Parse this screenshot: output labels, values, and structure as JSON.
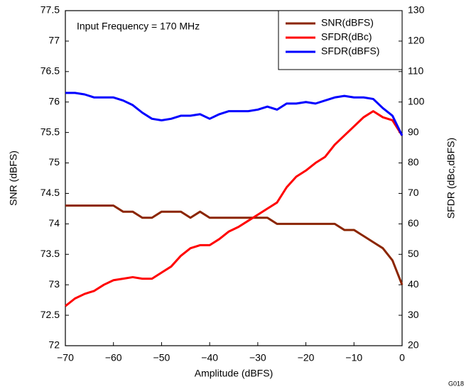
{
  "chart_data": {
    "type": "line",
    "annotation": "Input Frequency = 170 MHz",
    "figure_id": "G018",
    "xlabel": "Amplitude (dBFS)",
    "ylabel": "SNR (dBFS)",
    "y2label": "SFDR (dBc,dBFS)",
    "x": [
      -70,
      -68,
      -66,
      -64,
      -62,
      -60,
      -58,
      -56,
      -54,
      -52,
      -50,
      -48,
      -46,
      -44,
      -42,
      -40,
      -38,
      -36,
      -34,
      -32,
      -30,
      -28,
      -26,
      -24,
      -22,
      -20,
      -18,
      -16,
      -14,
      -12,
      -10,
      -8,
      -6,
      -4,
      -2,
      0
    ],
    "series": [
      {
        "name": "SNR(dBFS)",
        "color": "#8b2500",
        "axis": "y",
        "values": [
          74.3,
          74.3,
          74.3,
          74.3,
          74.3,
          74.3,
          74.2,
          74.2,
          74.1,
          74.1,
          74.2,
          74.2,
          74.2,
          74.1,
          74.2,
          74.1,
          74.1,
          74.1,
          74.1,
          74.1,
          74.1,
          74.1,
          74.0,
          74.0,
          74.0,
          74.0,
          74.0,
          74.0,
          74.0,
          73.9,
          73.9,
          73.8,
          73.7,
          73.6,
          73.4,
          73.0
        ]
      },
      {
        "name": "SFDR(dBc)",
        "color": "#ff0000",
        "axis": "y2",
        "values": [
          33,
          35.5,
          37,
          38,
          40,
          41.5,
          42,
          42.5,
          42,
          42,
          44,
          46,
          49.5,
          52,
          53,
          53,
          55,
          57.5,
          59,
          61,
          63,
          65,
          67,
          72,
          75.5,
          77.5,
          80,
          82,
          86,
          89,
          92,
          95,
          97,
          95,
          94,
          89
        ]
      },
      {
        "name": "SFDR(dBFS)",
        "color": "#0000ff",
        "axis": "y2",
        "values": [
          103,
          103,
          102.5,
          101.5,
          101.5,
          101.5,
          100.5,
          99,
          96.5,
          94.5,
          94,
          94.5,
          95.5,
          95.5,
          96,
          94.5,
          96,
          97,
          97,
          97,
          97.5,
          98.5,
          97.5,
          99.5,
          99.5,
          100,
          99.5,
          100.5,
          101.5,
          102,
          101.5,
          101.5,
          101,
          98,
          95.5,
          89
        ]
      }
    ],
    "xlim": [
      -70,
      0
    ],
    "xticks": [
      {
        "value": -70,
        "label": "−70"
      },
      {
        "value": -60,
        "label": "−60"
      },
      {
        "value": -50,
        "label": "−50"
      },
      {
        "value": -40,
        "label": "−40"
      },
      {
        "value": -30,
        "label": "−30"
      },
      {
        "value": -20,
        "label": "−20"
      },
      {
        "value": -10,
        "label": "−10"
      },
      0
    ],
    "ylim": [
      72,
      77.5
    ],
    "yticks": [
      72,
      72.5,
      73,
      73.5,
      74,
      74.5,
      75,
      75.5,
      76,
      76.5,
      77,
      77.5
    ],
    "y2lim": [
      20,
      130
    ],
    "y2ticks": [
      20,
      30,
      40,
      50,
      60,
      70,
      80,
      90,
      100,
      110,
      120,
      130
    ],
    "legend": "top-right",
    "grid": false
  }
}
